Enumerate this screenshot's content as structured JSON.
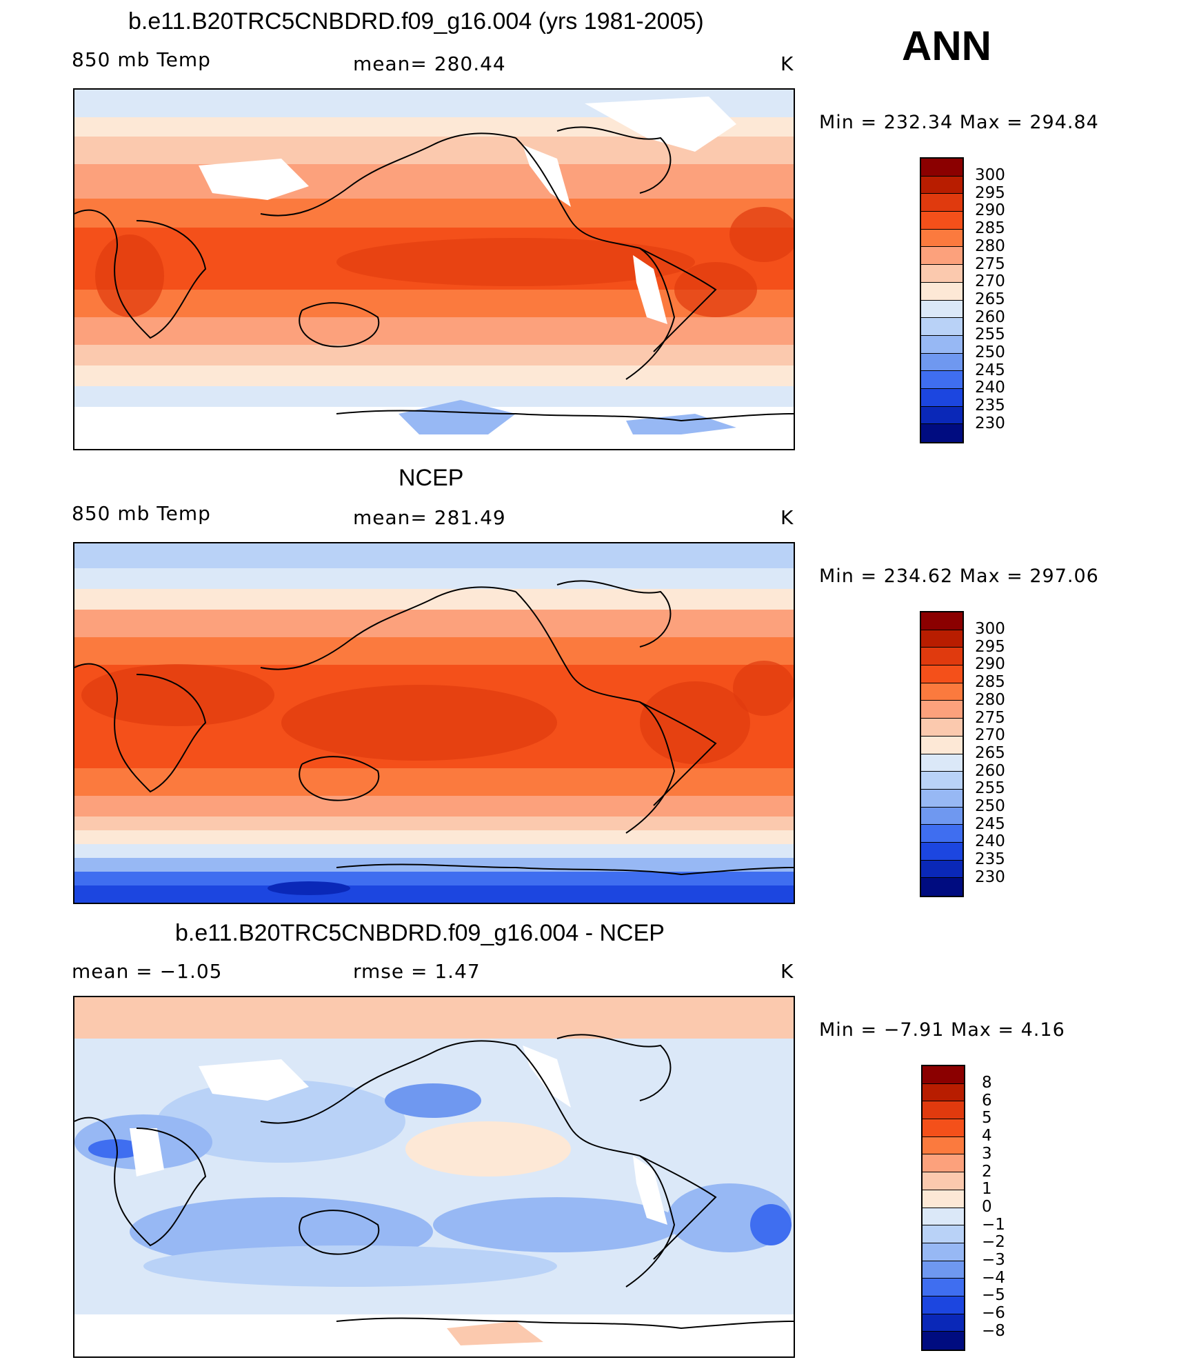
{
  "header": {
    "season": "ANN"
  },
  "panels": [
    {
      "title": "b.e11.B20TRC5CNBDRD.f09_g16.004 (yrs 1981-2005)",
      "left_label": "850 mb Temp",
      "center_label": "mean=  280.44",
      "units": "K",
      "minmax": "Min  =  232.34  Max  =  294.84"
    },
    {
      "title": "NCEP",
      "left_label": "850 mb Temp",
      "center_label": "mean=  281.49",
      "units": "K",
      "minmax": "Min  =  234.62  Max  =  297.06"
    },
    {
      "title": "b.e11.B20TRC5CNBDRD.f09_g16.004 - NCEP",
      "left_label": "mean  =   −1.05",
      "center_label": "rmse  =    1.47",
      "units": "K",
      "minmax": "Min  =   −7.91  Max  =    4.16"
    }
  ],
  "colorbars": {
    "abs": {
      "labels": [
        "300",
        "295",
        "290",
        "285",
        "280",
        "275",
        "270",
        "265",
        "260",
        "255",
        "250",
        "245",
        "240",
        "235",
        "230"
      ],
      "colors": [
        "#8b0000",
        "#b81d00",
        "#e03a0e",
        "#f4501a",
        "#fb7a3e",
        "#fca17c",
        "#fbc9ae",
        "#fde8d6",
        "#dbe8f8",
        "#b9d2f7",
        "#97b8f4",
        "#6f98f0",
        "#3f6ef0",
        "#1c46e0",
        "#0a28b8",
        "#000c80"
      ]
    },
    "diff": {
      "labels": [
        "8",
        "6",
        "5",
        "4",
        "3",
        "2",
        "1",
        "0",
        "−1",
        "−2",
        "−3",
        "−4",
        "−5",
        "−6",
        "−8"
      ],
      "colors": [
        "#8b0000",
        "#b81d00",
        "#e03a0e",
        "#f4501a",
        "#fb7a3e",
        "#fca17c",
        "#fbc9ae",
        "#fde8d6",
        "#dbe8f8",
        "#b9d2f7",
        "#97b8f4",
        "#6f98f0",
        "#3f6ef0",
        "#1c46e0",
        "#0a28b8",
        "#000c80"
      ]
    }
  }
}
